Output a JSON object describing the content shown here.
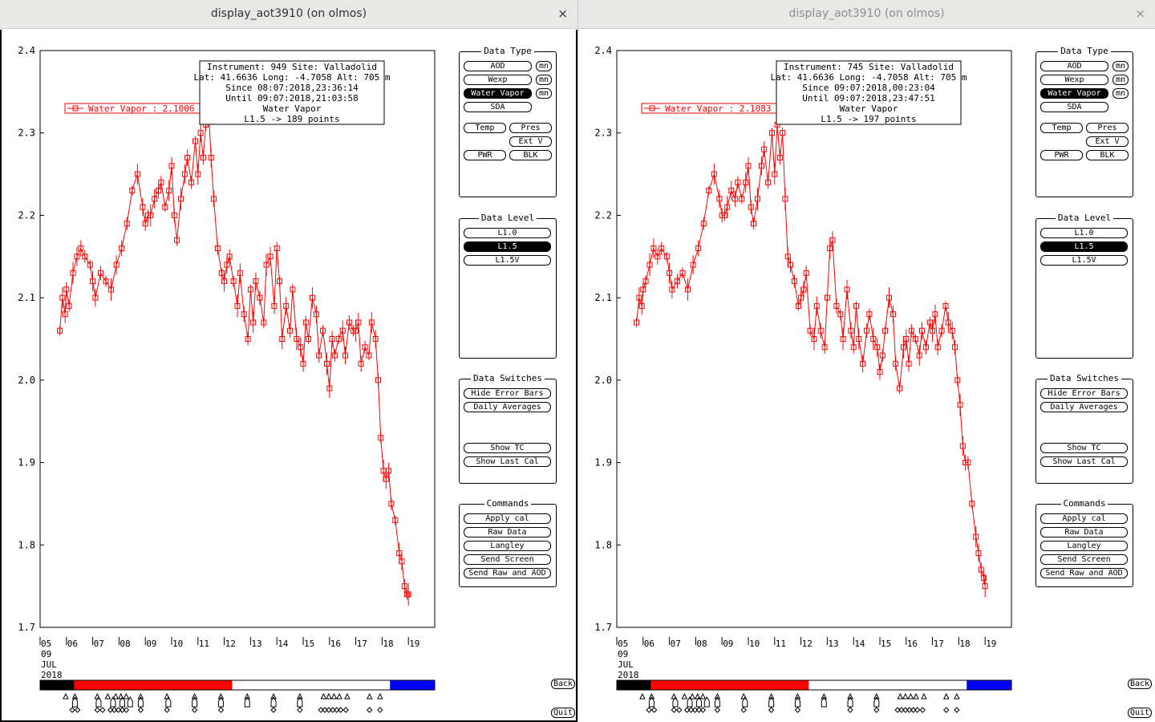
{
  "windows": [
    {
      "title": "display_aot3910 (on olmos)",
      "active": true,
      "close_icon": "×",
      "info": [
        "Instrument: 949 Site: Valladolid",
        "Lat: 41.6636 Long: -4.7058 Alt: 705 m",
        "Since 08:07:2018,23:36:14",
        "Until 09:07:2018,21:03:58",
        "Water Vapor",
        "L1.5 -> 189 points"
      ],
      "legend": "Water Vapor : 2.1006 ±",
      "back_label": "Back",
      "quit_label": "Quit",
      "chart_data": {
        "type": "line",
        "ylim": [
          1.7,
          2.4
        ],
        "yticks": [
          "1.7",
          "1.8",
          "1.9",
          "2.0",
          "2.1",
          "2.2",
          "2.3",
          "2.4"
        ],
        "xlim": [
          5,
          20
        ],
        "xticks": [
          5,
          6,
          7,
          8,
          9,
          10,
          11,
          12,
          13,
          14,
          15,
          16,
          17,
          18,
          19
        ],
        "xticklabels": [
          "05",
          "06",
          "07",
          "08",
          "09",
          "10",
          "11",
          "12",
          "13",
          "14",
          "15",
          "16",
          "17",
          "18",
          "19"
        ],
        "date_label": [
          "09",
          "JUL",
          "2018"
        ],
        "series": [
          {
            "color": "#ff0000",
            "x": [
              5.75,
              5.85,
              5.95,
              6.0,
              6.1,
              6.25,
              6.4,
              6.55,
              6.7,
              6.9,
              7.0,
              7.1,
              7.3,
              7.5,
              7.7,
              7.9,
              8.1,
              8.3,
              8.5,
              8.7,
              8.9,
              9.0,
              9.1,
              9.2,
              9.35,
              9.5,
              9.6,
              9.75,
              9.9,
              10.0,
              10.1,
              10.2,
              10.35,
              10.5,
              10.6,
              10.75,
              10.9,
              11.0,
              11.1,
              11.2,
              11.3,
              11.4,
              11.5,
              11.6,
              11.75,
              11.9,
              12.0,
              12.1,
              12.2,
              12.35,
              12.5,
              12.6,
              12.75,
              12.9,
              13.0,
              13.1,
              13.2,
              13.35,
              13.5,
              13.6,
              13.75,
              13.9,
              14.0,
              14.1,
              14.2,
              14.35,
              14.5,
              14.6,
              14.75,
              14.9,
              15.0,
              15.1,
              15.2,
              15.35,
              15.5,
              15.6,
              15.75,
              15.9,
              16.0,
              16.1,
              16.2,
              16.35,
              16.5,
              16.6,
              16.75,
              16.9,
              17.0,
              17.1,
              17.2,
              17.35,
              17.5,
              17.6,
              17.75,
              17.85,
              17.95,
              18.05,
              18.15,
              18.25,
              18.35,
              18.5,
              18.65,
              18.75,
              18.85,
              18.95,
              19.0
            ],
            "y": [
              2.06,
              2.1,
              2.08,
              2.11,
              2.09,
              2.13,
              2.15,
              2.16,
              2.15,
              2.14,
              2.12,
              2.1,
              2.13,
              2.12,
              2.11,
              2.14,
              2.16,
              2.19,
              2.23,
              2.25,
              2.21,
              2.19,
              2.2,
              2.2,
              2.22,
              2.23,
              2.24,
              2.21,
              2.23,
              2.26,
              2.2,
              2.17,
              2.22,
              2.25,
              2.27,
              2.24,
              2.29,
              2.25,
              2.3,
              2.27,
              2.31,
              2.33,
              2.27,
              2.22,
              2.16,
              2.13,
              2.12,
              2.14,
              2.15,
              2.12,
              2.09,
              2.13,
              2.08,
              2.05,
              2.11,
              2.07,
              2.12,
              2.1,
              2.07,
              2.14,
              2.15,
              2.09,
              2.16,
              2.12,
              2.05,
              2.09,
              2.06,
              2.11,
              2.05,
              2.04,
              2.02,
              2.07,
              2.05,
              2.1,
              2.08,
              2.03,
              2.06,
              2.02,
              1.99,
              2.05,
              2.03,
              2.05,
              2.06,
              2.03,
              2.07,
              2.06,
              2.06,
              2.07,
              2.02,
              2.04,
              2.03,
              2.07,
              2.05,
              2.0,
              1.93,
              1.89,
              1.88,
              1.89,
              1.85,
              1.83,
              1.79,
              1.78,
              1.75,
              1.74,
              1.74
            ]
          }
        ]
      },
      "colorbar": {
        "segments": [
          {
            "start": 5,
            "end": 6.3,
            "color": "#000000"
          },
          {
            "start": 6.3,
            "end": 12.3,
            "color": "#ff0000"
          },
          {
            "start": 12.3,
            "end": 18.3,
            "color": "#ffffff"
          },
          {
            "start": 18.3,
            "end": 20,
            "color": "#0000ff"
          }
        ]
      },
      "markers": {
        "triangles": [
          6.4,
          6.75,
          7.6,
          8.0,
          8.3,
          8.5,
          8.7,
          9.25,
          10.25,
          11.3,
          12.3,
          13.3,
          14.3,
          15.3,
          16.2,
          16.4,
          16.6,
          16.8,
          17.1,
          17.95,
          18.35
        ],
        "diamonds": [
          6.65,
          6.85,
          7.6,
          7.8,
          8.1,
          8.25,
          8.4,
          8.55,
          8.7,
          9.25,
          10.25,
          11.3,
          12.3,
          14.3,
          15.3,
          16.1,
          16.25,
          16.4,
          16.55,
          16.7,
          16.85,
          17.05,
          17.95,
          18.35
        ],
        "arrows": [
          6.75,
          7.65,
          8.2,
          8.55,
          8.85,
          9.25,
          10.3,
          11.3,
          12.3,
          13.3,
          14.3,
          15.3
        ]
      }
    },
    {
      "title": "display_aot3910 (on olmos)",
      "active": false,
      "close_icon": "×",
      "info": [
        "Instrument: 745 Site: Valladolid",
        "Lat: 41.6636 Long: -4.7058 Alt: 705 m",
        "Since 09:07:2018,00:23:04",
        "Until 09:07:2018,23:47:51",
        "Water Vapor",
        "L1.5 -> 197 points"
      ],
      "legend": "Water Vapor : 2.1083 ±",
      "back_label": "Back",
      "quit_label": "Quit",
      "chart_data": {
        "type": "line",
        "ylim": [
          1.7,
          2.4
        ],
        "yticks": [
          "1.7",
          "1.8",
          "1.9",
          "2.0",
          "2.1",
          "2.2",
          "2.3",
          "2.4"
        ],
        "xlim": [
          5,
          20
        ],
        "xticks": [
          5,
          6,
          7,
          8,
          9,
          10,
          11,
          12,
          13,
          14,
          15,
          16,
          17,
          18,
          19
        ],
        "xticklabels": [
          "05",
          "06",
          "07",
          "08",
          "09",
          "10",
          "11",
          "12",
          "13",
          "14",
          "15",
          "16",
          "17",
          "18",
          "19"
        ],
        "date_label": [
          "09",
          "JUL",
          "2018"
        ],
        "series": [
          {
            "color": "#ff0000",
            "x": [
              5.75,
              5.85,
              5.95,
              6.0,
              6.1,
              6.25,
              6.4,
              6.55,
              6.7,
              6.9,
              7.0,
              7.1,
              7.3,
              7.5,
              7.7,
              7.9,
              8.1,
              8.3,
              8.5,
              8.7,
              8.9,
              9.0,
              9.1,
              9.2,
              9.35,
              9.5,
              9.6,
              9.75,
              9.9,
              10.0,
              10.1,
              10.2,
              10.35,
              10.5,
              10.6,
              10.75,
              10.9,
              11.0,
              11.1,
              11.2,
              11.3,
              11.4,
              11.5,
              11.6,
              11.75,
              11.9,
              12.0,
              12.1,
              12.2,
              12.35,
              12.5,
              12.6,
              12.75,
              12.9,
              13.0,
              13.1,
              13.2,
              13.35,
              13.5,
              13.6,
              13.75,
              13.9,
              14.0,
              14.1,
              14.2,
              14.35,
              14.5,
              14.6,
              14.75,
              14.9,
              15.0,
              15.1,
              15.2,
              15.35,
              15.5,
              15.6,
              15.75,
              15.9,
              16.0,
              16.1,
              16.2,
              16.35,
              16.5,
              16.6,
              16.75,
              16.9,
              17.0,
              17.1,
              17.2,
              17.35,
              17.5,
              17.6,
              17.75,
              17.85,
              17.95,
              18.05,
              18.15,
              18.25,
              18.35,
              18.5,
              18.65,
              18.75,
              18.85,
              18.95,
              19.0
            ],
            "y": [
              2.07,
              2.1,
              2.09,
              2.11,
              2.12,
              2.14,
              2.16,
              2.15,
              2.16,
              2.15,
              2.13,
              2.11,
              2.12,
              2.13,
              2.11,
              2.14,
              2.16,
              2.19,
              2.23,
              2.25,
              2.22,
              2.2,
              2.2,
              2.21,
              2.23,
              2.22,
              2.24,
              2.22,
              2.24,
              2.26,
              2.21,
              2.19,
              2.22,
              2.26,
              2.28,
              2.24,
              2.3,
              2.25,
              2.31,
              2.27,
              2.3,
              2.22,
              2.15,
              2.14,
              2.12,
              2.09,
              2.1,
              2.11,
              2.13,
              2.06,
              2.05,
              2.09,
              2.06,
              2.04,
              2.1,
              2.16,
              2.17,
              2.09,
              2.08,
              2.05,
              2.11,
              2.06,
              2.04,
              2.09,
              2.05,
              2.02,
              2.06,
              2.08,
              2.05,
              2.04,
              2.01,
              2.03,
              2.06,
              2.1,
              2.08,
              2.02,
              1.99,
              2.04,
              2.05,
              2.02,
              2.06,
              2.05,
              2.03,
              2.06,
              2.04,
              2.07,
              2.06,
              2.08,
              2.04,
              2.06,
              2.09,
              2.07,
              2.06,
              2.04,
              2.0,
              1.97,
              1.92,
              1.9,
              1.9,
              1.85,
              1.81,
              1.79,
              1.77,
              1.76,
              1.75
            ]
          }
        ]
      },
      "colorbar": {
        "segments": [
          {
            "start": 5,
            "end": 6.3,
            "color": "#000000"
          },
          {
            "start": 6.3,
            "end": 12.3,
            "color": "#ff0000"
          },
          {
            "start": 12.3,
            "end": 18.3,
            "color": "#ffffff"
          },
          {
            "start": 18.3,
            "end": 20,
            "color": "#0000ff"
          }
        ]
      },
      "markers": {
        "triangles": [
          6.4,
          6.75,
          7.6,
          8.0,
          8.3,
          8.5,
          8.7,
          9.25,
          10.25,
          11.3,
          12.3,
          13.3,
          14.3,
          15.3,
          16.2,
          16.4,
          16.6,
          16.8,
          17.1,
          17.95,
          18.35
        ],
        "diamonds": [
          6.65,
          6.85,
          7.6,
          7.8,
          8.1,
          8.25,
          8.4,
          8.55,
          8.7,
          9.25,
          10.25,
          11.3,
          12.3,
          14.3,
          15.3,
          16.1,
          16.25,
          16.4,
          16.55,
          16.7,
          16.85,
          17.05,
          17.95,
          18.35
        ],
        "arrows": [
          6.75,
          7.65,
          8.2,
          8.55,
          8.85,
          9.25,
          10.3,
          11.3,
          12.3,
          13.3,
          14.3,
          15.3
        ]
      }
    }
  ],
  "panels": {
    "data_type": {
      "title": "Data Type",
      "aod": "AOD",
      "wexp": "Wexp",
      "water_vapor": "Water Vapor",
      "sda": "SDA",
      "mn": "mn",
      "temp": "Temp",
      "pres": "Pres",
      "ext_v": "Ext V",
      "pwr": "PWR",
      "blk": "BLK",
      "selected": "water_vapor"
    },
    "data_level": {
      "title": "Data Level",
      "l10": "L1.0",
      "l15": "L1.5",
      "l15v": "L1.5V",
      "selected": "l15"
    },
    "data_switches": {
      "title": "Data Switches",
      "hide_error_bars": "Hide Error Bars",
      "daily_averages": "Daily Averages",
      "show_tc": "Show TC",
      "show_last_cal": "Show Last Cal"
    },
    "commands": {
      "title": "Commands",
      "apply_cal": "Apply cal",
      "raw_data": "Raw Data",
      "langley": "Langley",
      "send_screen": "Send Screen",
      "send_raw_aod": "Send Raw and AOD"
    }
  }
}
